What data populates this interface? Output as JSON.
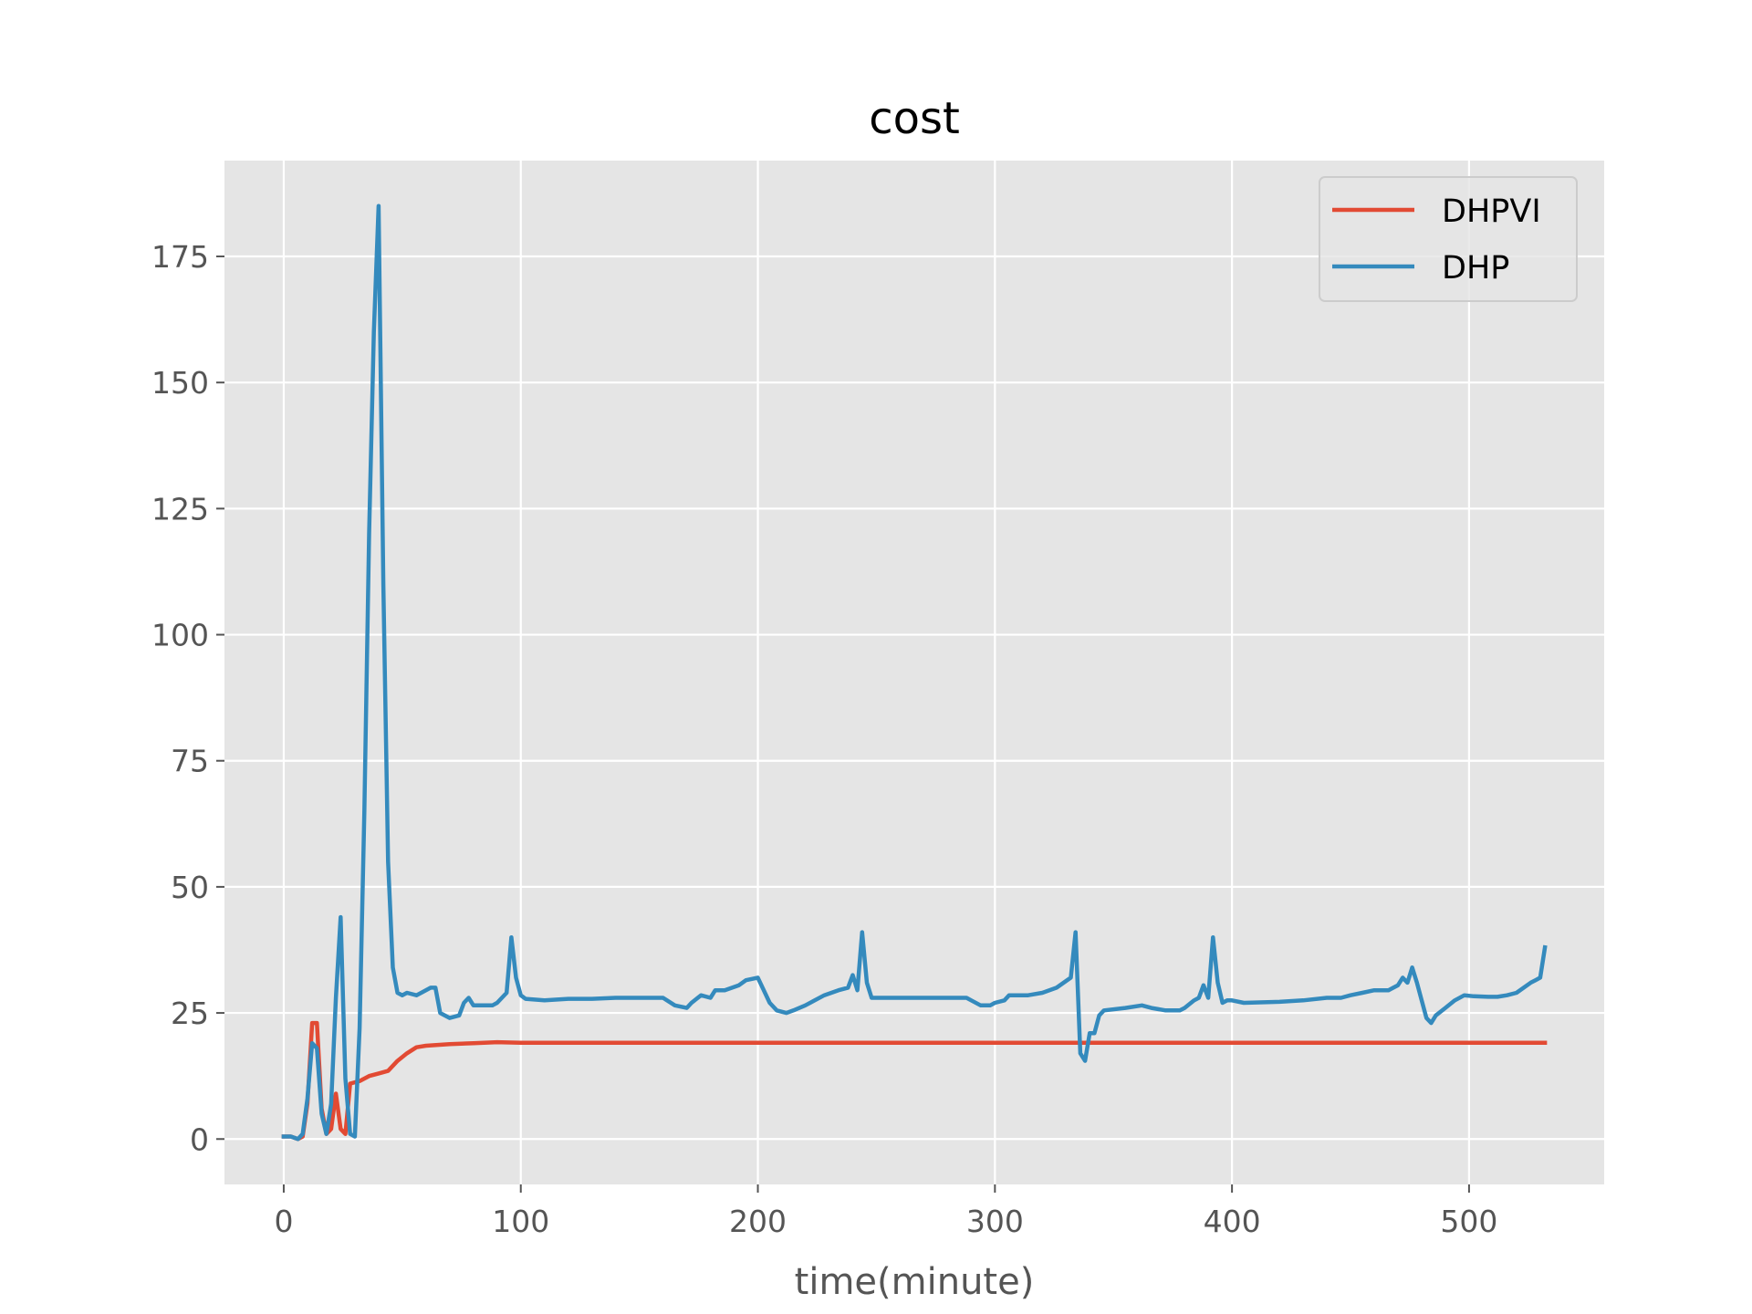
{
  "chart_data": {
    "type": "line",
    "title": "cost",
    "xlabel": "time(minute)",
    "ylabel": "",
    "xlim": [
      -25,
      557
    ],
    "ylim": [
      -9,
      194
    ],
    "xticks": [
      0,
      100,
      200,
      300,
      400,
      500
    ],
    "yticks": [
      0,
      25,
      50,
      75,
      100,
      125,
      150,
      175
    ],
    "grid": true,
    "legend_position": "top-right",
    "series": [
      {
        "name": "DHPVI",
        "color": "#E24A33",
        "points": [
          [
            0,
            0.5
          ],
          [
            3,
            0.5
          ],
          [
            6,
            0
          ],
          [
            8,
            0.5
          ],
          [
            10,
            7
          ],
          [
            12,
            23
          ],
          [
            14,
            23
          ],
          [
            16,
            6
          ],
          [
            18,
            1
          ],
          [
            20,
            2
          ],
          [
            22,
            9
          ],
          [
            24,
            2
          ],
          [
            26,
            1
          ],
          [
            28,
            11
          ],
          [
            32,
            11.5
          ],
          [
            36,
            12.5
          ],
          [
            40,
            13
          ],
          [
            44,
            13.5
          ],
          [
            48,
            15.5
          ],
          [
            52,
            17
          ],
          [
            56,
            18.2
          ],
          [
            60,
            18.5
          ],
          [
            70,
            18.8
          ],
          [
            80,
            19
          ],
          [
            90,
            19.2
          ],
          [
            100,
            19.1
          ],
          [
            150,
            19.1
          ],
          [
            200,
            19.1
          ],
          [
            300,
            19.1
          ],
          [
            400,
            19.1
          ],
          [
            500,
            19.1
          ],
          [
            532,
            19.1
          ]
        ]
      },
      {
        "name": "DHP",
        "color": "#348ABD",
        "points": [
          [
            0,
            0.5
          ],
          [
            3,
            0.5
          ],
          [
            6,
            0
          ],
          [
            8,
            1
          ],
          [
            10,
            8
          ],
          [
            12,
            19
          ],
          [
            14,
            18
          ],
          [
            16,
            5
          ],
          [
            18,
            1
          ],
          [
            20,
            7
          ],
          [
            22,
            28
          ],
          [
            24,
            44
          ],
          [
            26,
            12
          ],
          [
            28,
            1
          ],
          [
            30,
            0.5
          ],
          [
            32,
            22
          ],
          [
            34,
            65
          ],
          [
            36,
            120
          ],
          [
            38,
            160
          ],
          [
            40,
            185
          ],
          [
            42,
            110
          ],
          [
            44,
            55
          ],
          [
            46,
            34
          ],
          [
            48,
            29
          ],
          [
            50,
            28.5
          ],
          [
            52,
            29
          ],
          [
            56,
            28.5
          ],
          [
            58,
            29
          ],
          [
            62,
            30
          ],
          [
            64,
            30
          ],
          [
            66,
            25
          ],
          [
            70,
            24
          ],
          [
            74,
            24.5
          ],
          [
            76,
            27
          ],
          [
            78,
            28
          ],
          [
            80,
            26.5
          ],
          [
            85,
            26.5
          ],
          [
            88,
            26.5
          ],
          [
            90,
            27
          ],
          [
            94,
            29
          ],
          [
            96,
            40
          ],
          [
            98,
            32
          ],
          [
            100,
            28.5
          ],
          [
            102,
            27.8
          ],
          [
            110,
            27.5
          ],
          [
            120,
            27.8
          ],
          [
            130,
            27.8
          ],
          [
            140,
            28
          ],
          [
            150,
            28
          ],
          [
            160,
            28
          ],
          [
            165,
            26.5
          ],
          [
            170,
            26
          ],
          [
            172,
            27
          ],
          [
            176,
            28.5
          ],
          [
            180,
            28
          ],
          [
            182,
            29.5
          ],
          [
            186,
            29.5
          ],
          [
            192,
            30.5
          ],
          [
            195,
            31.5
          ],
          [
            200,
            32
          ],
          [
            202,
            30
          ],
          [
            205,
            27
          ],
          [
            208,
            25.5
          ],
          [
            212,
            25
          ],
          [
            215,
            25.5
          ],
          [
            220,
            26.5
          ],
          [
            228,
            28.5
          ],
          [
            234,
            29.5
          ],
          [
            238,
            30
          ],
          [
            240,
            32.5
          ],
          [
            242,
            29.5
          ],
          [
            244,
            41
          ],
          [
            246,
            31
          ],
          [
            248,
            28
          ],
          [
            252,
            28
          ],
          [
            254,
            28
          ],
          [
            258,
            28
          ],
          [
            270,
            28
          ],
          [
            282,
            28
          ],
          [
            288,
            28
          ],
          [
            290,
            27.5
          ],
          [
            294,
            26.5
          ],
          [
            298,
            26.5
          ],
          [
            300,
            27
          ],
          [
            304,
            27.5
          ],
          [
            306,
            28.5
          ],
          [
            310,
            28.5
          ],
          [
            314,
            28.5
          ],
          [
            320,
            29
          ],
          [
            326,
            30
          ],
          [
            332,
            32
          ],
          [
            334,
            41
          ],
          [
            336,
            17
          ],
          [
            338,
            15.5
          ],
          [
            340,
            21
          ],
          [
            342,
            21
          ],
          [
            344,
            24.5
          ],
          [
            346,
            25.5
          ],
          [
            355,
            26
          ],
          [
            362,
            26.5
          ],
          [
            366,
            26
          ],
          [
            372,
            25.5
          ],
          [
            378,
            25.5
          ],
          [
            380,
            26
          ],
          [
            384,
            27.5
          ],
          [
            386,
            28
          ],
          [
            388,
            30.5
          ],
          [
            390,
            28
          ],
          [
            392,
            40
          ],
          [
            394,
            31
          ],
          [
            396,
            27
          ],
          [
            398,
            27.5
          ],
          [
            400,
            27.5
          ],
          [
            405,
            27
          ],
          [
            420,
            27.2
          ],
          [
            430,
            27.5
          ],
          [
            440,
            28
          ],
          [
            446,
            28
          ],
          [
            450,
            28.5
          ],
          [
            455,
            29
          ],
          [
            460,
            29.5
          ],
          [
            466,
            29.5
          ],
          [
            470,
            30.5
          ],
          [
            472,
            32
          ],
          [
            474,
            31
          ],
          [
            476,
            34
          ],
          [
            478,
            31
          ],
          [
            480,
            27.5
          ],
          [
            482,
            24
          ],
          [
            484,
            23
          ],
          [
            486,
            24.5
          ],
          [
            490,
            26
          ],
          [
            494,
            27.5
          ],
          [
            498,
            28.5
          ],
          [
            502,
            28.3
          ],
          [
            508,
            28.2
          ],
          [
            512,
            28.2
          ],
          [
            516,
            28.5
          ],
          [
            520,
            29
          ],
          [
            526,
            31
          ],
          [
            528,
            31.5
          ],
          [
            530,
            32
          ],
          [
            532,
            38
          ]
        ]
      }
    ]
  }
}
